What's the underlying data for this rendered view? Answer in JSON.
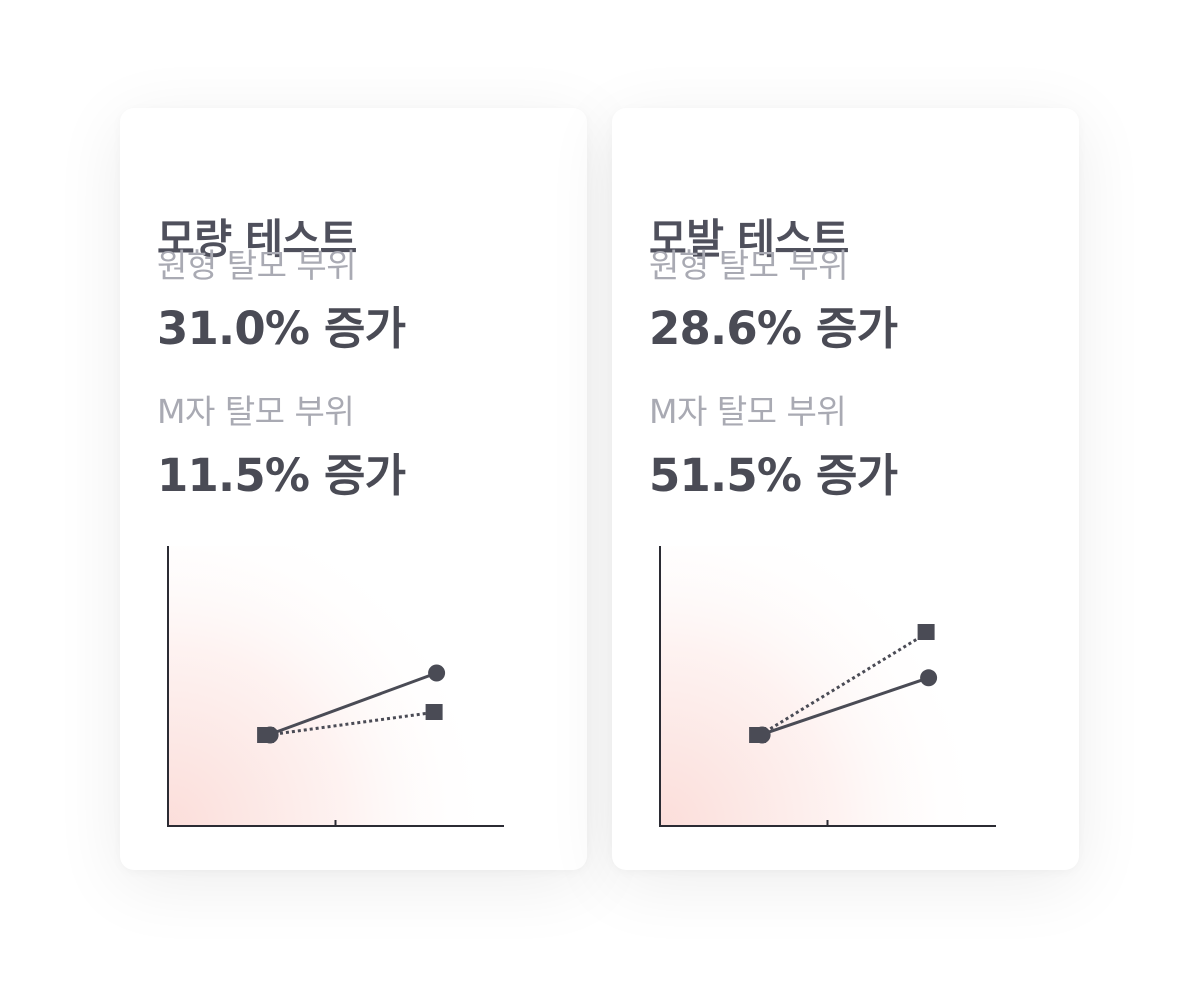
{
  "cards": [
    {
      "title": "모량 테스트",
      "metrics": [
        {
          "label": "원형 탈모 부위",
          "value": "31.0% 증가"
        },
        {
          "label": "M자 탈모 부위",
          "value": "11.5% 증가"
        }
      ]
    },
    {
      "title": "모발 테스트",
      "metrics": [
        {
          "label": "원형 탈모 부위",
          "value": "28.6% 증가"
        },
        {
          "label": "M자 탈모 부위",
          "value": "51.5% 증가"
        }
      ]
    }
  ],
  "chart_data": [
    {
      "type": "line",
      "title": "모량 테스트",
      "x": [
        0,
        1
      ],
      "series": [
        {
          "values": [
            100,
            131.0
          ],
          "marker": "circle",
          "style": "solid"
        },
        {
          "values": [
            100,
            111.5
          ],
          "marker": "square",
          "style": "dotted"
        }
      ],
      "xlim": [
        -0.6,
        1.4
      ],
      "ylim": [
        0,
        100
      ],
      "grid": false,
      "colors": {
        "line": "#4a4b55",
        "background_tint": "#fbdcd8"
      }
    },
    {
      "type": "line",
      "title": "모발 테스트",
      "x": [
        0,
        1
      ],
      "series": [
        {
          "values": [
            100,
            128.6
          ],
          "marker": "circle",
          "style": "solid"
        },
        {
          "values": [
            100,
            151.5
          ],
          "marker": "square",
          "style": "dotted"
        }
      ],
      "xlim": [
        -0.6,
        1.4
      ],
      "ylim": [
        0,
        100
      ],
      "grid": false,
      "colors": {
        "line": "#4a4b55",
        "background_tint": "#fbdcd8"
      }
    }
  ]
}
